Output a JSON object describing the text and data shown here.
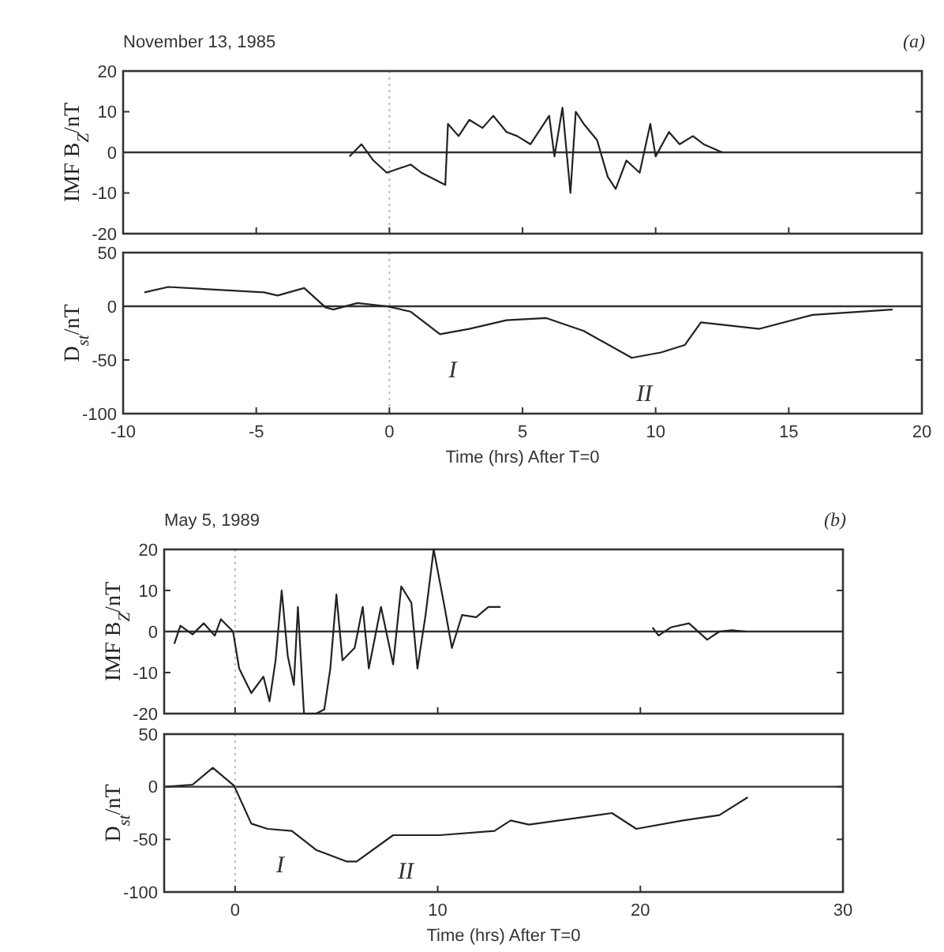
{
  "chart_data": [
    {
      "type": "line",
      "title": "November 13, 1985",
      "ylabel": "IMF B$_{Z}$/nT",
      "annotations": [
        "(a)"
      ],
      "xlim": [
        -10,
        20
      ],
      "xticks": [
        -10,
        -5,
        0,
        5,
        10,
        15,
        20
      ],
      "ylim": [
        -20,
        20
      ],
      "yticks": [
        -20,
        -10,
        0,
        10,
        20
      ],
      "tick_labels": "y",
      "ref_lines": [
        {
          "axis": "y",
          "value": 0,
          "color": "#333333",
          "line_style": "solid"
        },
        {
          "axis": "x",
          "value": 0,
          "color": "#bbbbbb",
          "line_style": "dotted"
        }
      ],
      "series": [
        {
          "color": "#222222",
          "x": [
            -1.5,
            -1.05,
            -0.6,
            -0.1,
            0.8,
            1.2,
            2.1,
            2.2,
            2.6,
            3.0,
            3.5,
            3.9,
            4.4,
            4.8,
            5.3,
            5.7,
            6.0,
            6.2,
            6.5,
            6.8,
            7.0,
            7.3,
            7.8,
            8.2,
            8.5,
            8.9,
            9.4,
            9.8,
            10.0,
            10.5,
            10.9,
            11.4,
            11.8,
            12.5
          ],
          "values": [
            -1,
            2,
            -2,
            -5,
            -3,
            -5,
            -8,
            7,
            4,
            8,
            6,
            9,
            5,
            4,
            2,
            6,
            9,
            -1,
            11,
            -10,
            10,
            7,
            3,
            -6,
            -9,
            -2,
            -5,
            7,
            -1,
            5,
            2,
            4,
            2,
            0
          ]
        }
      ]
    },
    {
      "type": "line",
      "xlabel": "Time (hrs) After T=0",
      "ylabel": "D$_{st}$/nT",
      "xlim": [
        -10,
        20
      ],
      "xticks": [
        -10,
        -5,
        0,
        5,
        10,
        15,
        20
      ],
      "ylim": [
        -100,
        50
      ],
      "yticks": [
        -100,
        -50,
        0,
        50
      ],
      "annotations": [
        {
          "text": "I",
          "x": 1.9,
          "y": -26
        },
        {
          "text": "II",
          "x": 9.1,
          "y": -48
        }
      ],
      "ref_lines": [
        {
          "axis": "y",
          "value": 0,
          "color": "#333333",
          "line_style": "solid"
        },
        {
          "axis": "x",
          "value": 0,
          "color": "#bbbbbb",
          "line_style": "dotted"
        }
      ],
      "series": [
        {
          "color": "#222222",
          "x": [
            -9.2,
            -8.3,
            -4.7,
            -4.2,
            -3.2,
            -2.4,
            -2.1,
            -1.2,
            -0.1,
            0.8,
            1.9,
            3.0,
            4.4,
            5.9,
            7.3,
            9.1,
            10.2,
            11.1,
            11.7,
            13.9,
            15.9,
            18.9
          ],
          "values": [
            13,
            18,
            13,
            10,
            17,
            -1,
            -3,
            3,
            0,
            -5,
            -26,
            -21,
            -13,
            -11,
            -23,
            -48,
            -43,
            -36,
            -15,
            -21,
            -8,
            -3
          ]
        }
      ]
    },
    {
      "type": "line",
      "title": "May 5, 1989",
      "ylabel": "IMF B$_{Z}$/nT",
      "annotations": [
        "(b)"
      ],
      "xlim": [
        -3.5,
        30
      ],
      "xticks": [
        0,
        10,
        20,
        30
      ],
      "ylim": [
        -20,
        20
      ],
      "yticks": [
        -20,
        -10,
        0,
        10,
        20
      ],
      "tick_labels": "y",
      "ref_lines": [
        {
          "axis": "y",
          "value": 0,
          "color": "#333333",
          "line_style": "solid"
        },
        {
          "axis": "x",
          "value": 0,
          "color": "#bbbbbb",
          "line_style": "dotted"
        }
      ],
      "series": [
        {
          "color": "#222222",
          "x": [
            -3.0,
            -2.7,
            -2.1,
            -1.55,
            -1.0,
            -0.7,
            -0.1,
            0.2,
            0.8,
            1.4,
            1.7,
            2.0,
            2.3,
            2.6,
            2.9,
            3.1,
            3.4,
            4.0,
            4.4,
            4.7,
            5.0,
            5.3,
            5.9,
            6.3,
            6.6,
            7.2,
            7.8,
            8.2,
            8.7,
            9.0,
            9.4,
            9.8,
            10.3,
            10.7,
            11.2,
            11.9,
            12.5,
            13.1,
            17,
            20.6,
            20.9,
            21.5,
            22.4,
            23.3,
            23.9,
            24.5,
            25.2
          ],
          "values": [
            -3,
            1.4,
            -0.7,
            2,
            -1,
            3,
            0,
            -9,
            -15,
            -11,
            -17,
            -7,
            10,
            -6,
            -13,
            6,
            -20,
            -20,
            -19,
            -9,
            9,
            -7,
            -4,
            6,
            -9,
            6,
            -8,
            11,
            7,
            -9,
            4,
            20,
            7,
            -4,
            4,
            3.5,
            6,
            6,
            null,
            1,
            -1,
            1,
            2,
            -2,
            0,
            0.3,
            0
          ]
        }
      ]
    },
    {
      "type": "line",
      "xlabel": "Time (hrs) After T=0",
      "ylabel": "D$_{st}$/nT",
      "xlim": [
        -3.5,
        30
      ],
      "xticks": [
        0,
        10,
        20,
        30
      ],
      "ylim": [
        -100,
        50
      ],
      "yticks": [
        -100,
        -50,
        0,
        50
      ],
      "annotations": [
        {
          "text": "I",
          "x": 1.6,
          "y": -40
        },
        {
          "text": "II",
          "x": 7.8,
          "y": -46
        }
      ],
      "ref_lines": [
        {
          "axis": "y",
          "value": 0,
          "color": "#333333",
          "line_style": "solid"
        },
        {
          "axis": "x",
          "value": 0,
          "color": "#bbbbbb",
          "line_style": "dotted"
        }
      ],
      "series": [
        {
          "color": "#222222",
          "x": [
            -3.4,
            -2.1,
            -1.1,
            -0.05,
            0.8,
            1.6,
            2.8,
            4.0,
            5.5,
            6.0,
            7.8,
            10.1,
            12.8,
            13.6,
            14.5,
            18.6,
            19.8,
            22.1,
            23.9,
            25.3
          ],
          "values": [
            0,
            2,
            18,
            1,
            -35,
            -40,
            -42,
            -60,
            -71,
            -71,
            -46,
            -46,
            -42,
            -32,
            -36,
            -25,
            -40,
            -32,
            -27,
            -10
          ]
        }
      ]
    }
  ]
}
